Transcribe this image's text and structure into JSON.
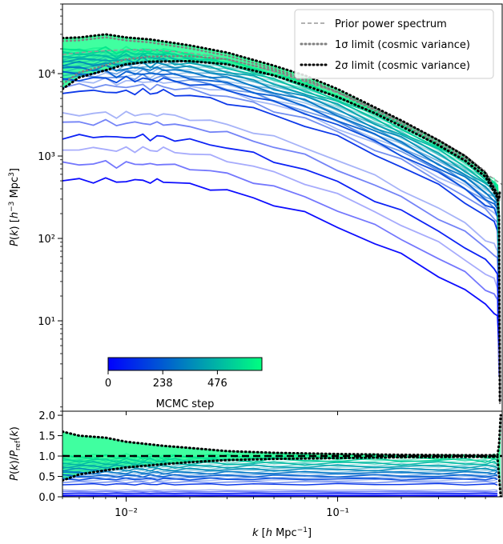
{
  "chart_data": {
    "type": "line",
    "x_scale": "log",
    "xlim": [
      0.005,
      0.6
    ],
    "xlabel": "k [h Mpc⁻¹]",
    "x_ticks": [
      0.01,
      0.1
    ],
    "x_tick_labels": [
      "10⁻²",
      "10⁻¹"
    ],
    "colors": {
      "start": "#0000ff",
      "end": "#00ff80",
      "prior": "#999999",
      "one_sigma": "#808080",
      "two_sigma": "#000000"
    },
    "top_panel": {
      "y_scale": "log",
      "ylim": [
        0.8,
        70000
      ],
      "ylabel": "P(k) [h⁻³ Mpc³]",
      "y_ticks": [
        10,
        100,
        1000,
        10000
      ],
      "y_tick_labels": [
        "10¹",
        "10²",
        "10³",
        "10⁴"
      ],
      "legend_position": "top-right",
      "legend": [
        {
          "label": "Prior power spectrum",
          "style": "dashed"
        },
        {
          "label": "1σ limit (cosmic variance)",
          "style": "dotted-gray"
        },
        {
          "label": "2σ limit (cosmic variance)",
          "style": "dotted-black"
        }
      ],
      "prior_spectrum": {
        "k": [
          0.005,
          0.006,
          0.008,
          0.01,
          0.013,
          0.015,
          0.02,
          0.025,
          0.03,
          0.04,
          0.05,
          0.07,
          0.1,
          0.15,
          0.2,
          0.3,
          0.4,
          0.5,
          0.6
        ],
        "P": [
          17000,
          18000,
          19000,
          19500,
          19500,
          19000,
          17800,
          16500,
          15000,
          12500,
          10500,
          8000,
          5800,
          3600,
          2500,
          1450,
          950,
          620,
          450
        ]
      },
      "two_sigma_upper_k": [
        0.005,
        0.006,
        0.008,
        0.01,
        0.013,
        0.02,
        0.03,
        0.05,
        0.07,
        0.1,
        0.15,
        0.2,
        0.3,
        0.4,
        0.5,
        0.57,
        0.58,
        0.585
      ],
      "two_sigma_upper_P": [
        27000,
        27500,
        30000,
        27500,
        26000,
        22000,
        18000,
        12500,
        9500,
        6500,
        3900,
        2700,
        1550,
        1000,
        620,
        340,
        300,
        380
      ],
      "two_sigma_lower_k": [
        0.005,
        0.006,
        0.008,
        0.01,
        0.013,
        0.02,
        0.03,
        0.05,
        0.07,
        0.1,
        0.15,
        0.2,
        0.3,
        0.4,
        0.5,
        0.57,
        0.58,
        0.585
      ],
      "two_sigma_lower_P": [
        6500,
        9000,
        11000,
        13000,
        14000,
        14200,
        13000,
        9500,
        7200,
        5200,
        3300,
        2300,
        1350,
        880,
        560,
        310,
        180,
        1
      ]
    },
    "bottom_panel": {
      "ylim": [
        0,
        2.1
      ],
      "ylabel": "P(k)/Pref(k)",
      "y_ticks": [
        0,
        0.5,
        1,
        1.5,
        2
      ],
      "y_tick_labels": [
        "0.0",
        "0.5",
        "1.0",
        "1.5",
        "2.0"
      ],
      "reference_line": 1.0,
      "two_sigma_upper_k": [
        0.005,
        0.006,
        0.008,
        0.01,
        0.015,
        0.02,
        0.03,
        0.05,
        0.1,
        0.2,
        0.4,
        0.57,
        0.58,
        0.59
      ],
      "two_sigma_upper_ratio": [
        1.6,
        1.5,
        1.45,
        1.35,
        1.25,
        1.2,
        1.12,
        1.08,
        1.05,
        1.03,
        1.02,
        1.02,
        1.3,
        2.0
      ],
      "two_sigma_lower_k": [
        0.005,
        0.006,
        0.008,
        0.01,
        0.015,
        0.02,
        0.03,
        0.05,
        0.1,
        0.2,
        0.4,
        0.57,
        0.58,
        0.59
      ],
      "two_sigma_lower_ratio": [
        0.4,
        0.55,
        0.65,
        0.72,
        0.8,
        0.85,
        0.9,
        0.93,
        0.95,
        0.97,
        0.98,
        0.98,
        0.5,
        0.0
      ]
    },
    "colorbar": {
      "label": "MCMC step",
      "ticks": [
        0,
        238,
        476
      ],
      "tick_labels": [
        "0",
        "238",
        "476"
      ],
      "range": [
        0,
        670
      ]
    },
    "mcmc_samples": {
      "k": [
        0.005,
        0.006,
        0.007,
        0.008,
        0.009,
        0.01,
        0.011,
        0.012,
        0.013,
        0.014,
        0.015,
        0.017,
        0.02,
        0.025,
        0.03,
        0.04,
        0.05,
        0.07,
        0.1,
        0.15,
        0.2,
        0.3,
        0.4,
        0.5,
        0.55,
        0.57
      ],
      "shape": [
        1.0,
        1.02,
        1.0,
        1.05,
        0.95,
        1.03,
        0.98,
        1.04,
        0.96,
        1.0,
        1.01,
        0.94,
        0.9,
        0.82,
        0.75,
        0.62,
        0.52,
        0.4,
        0.28,
        0.175,
        0.125,
        0.072,
        0.047,
        0.031,
        0.026,
        0.022
      ],
      "amplitudes": [
        500,
        800,
        1200,
        1700,
        2500,
        3200,
        6000,
        7000,
        8000,
        8500,
        9000,
        9500,
        10000,
        10500,
        11000,
        11500,
        12000,
        12500,
        13000,
        13500,
        14000,
        14500,
        15000,
        15500,
        16000,
        16500,
        17000,
        17500,
        18000,
        18500,
        19000,
        19500
      ],
      "steps": [
        0,
        20,
        40,
        60,
        80,
        100,
        120,
        140,
        160,
        180,
        200,
        220,
        240,
        260,
        280,
        300,
        320,
        340,
        360,
        380,
        400,
        420,
        440,
        460,
        480,
        500,
        520,
        540,
        560,
        580,
        600,
        620
      ],
      "reference_amplitude": 19500
    }
  }
}
